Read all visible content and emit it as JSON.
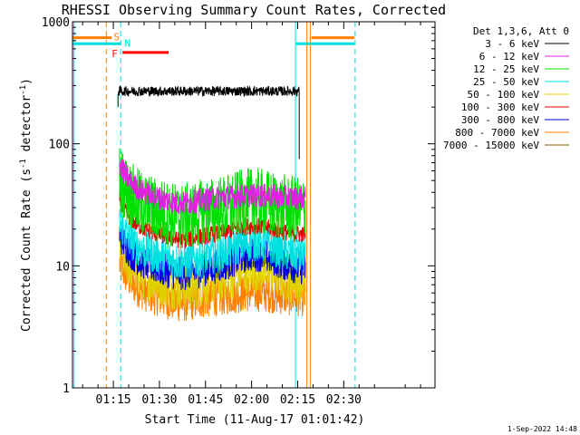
{
  "chart_data": {
    "type": "line",
    "title": "RHESSI Observing Summary Count Rates, Corrected",
    "xlabel": "Start Time (11-Aug-17 01:01:42)",
    "ylabel_parts": [
      "Corrected Count Rate (s",
      "-1",
      " detector",
      "-1",
      ")"
    ],
    "yscale": "log",
    "ylim": [
      1,
      1000
    ],
    "y_ticks": [
      {
        "v": 1,
        "label": "1"
      },
      {
        "v": 10,
        "label": "10"
      },
      {
        "v": 100,
        "label": "100"
      },
      {
        "v": 1000,
        "label": "1000"
      }
    ],
    "xlim_min": [
      61.7,
      179.7
    ],
    "x_ticks": [
      {
        "m": 75,
        "label": "01:15"
      },
      {
        "m": 90,
        "label": "01:30"
      },
      {
        "m": 105,
        "label": "01:45"
      },
      {
        "m": 120,
        "label": "02:00"
      },
      {
        "m": 135,
        "label": "02:15"
      },
      {
        "m": 150,
        "label": "02:30"
      }
    ],
    "legend_header": "Det 1,3,6, Att 0",
    "legend_position": "right",
    "series": [
      {
        "name": "3 - 6 keV",
        "color": "#000000",
        "level": 270,
        "noise": 0.02,
        "hump": 0.0,
        "start": 76.5,
        "end": 135.5
      },
      {
        "name": "6 - 12 keV",
        "color": "#e020e0",
        "level": 36,
        "noise": 0.05,
        "hump": 0.05
      },
      {
        "name": "12 - 25 keV",
        "color": "#00e000",
        "level": 28,
        "noise": 0.14,
        "hump": 0.2
      },
      {
        "name": "25 - 50 keV",
        "color": "#00e0e0",
        "level": 12,
        "noise": 0.08,
        "hump": 0.3
      },
      {
        "name": "50 - 100 keV",
        "color": "#e0d000",
        "level": 7.5,
        "noise": 0.1,
        "hump": 0.25
      },
      {
        "name": "100 - 300 keV",
        "color": "#e00000",
        "level": 18,
        "noise": 0.035,
        "hump": 0.18
      },
      {
        "name": "300 - 800 keV",
        "color": "#0000e0",
        "level": 9.5,
        "noise": 0.07,
        "hump": 0.3
      },
      {
        "name": "800 - 7000 keV",
        "color": "#ff8000",
        "level": 5.5,
        "noise": 0.08,
        "hump": 0.1
      },
      {
        "name": "7000 - 15000 keV",
        "color": "#806000",
        "level": null
      }
    ],
    "flags": {
      "S": {
        "label": "S",
        "color": "#ff8000",
        "level": 740,
        "segments": [
          [
            61.7,
            74.5
          ],
          [
            139.5,
            153.5
          ]
        ]
      },
      "N": {
        "label": "N",
        "color": "#00e0e0",
        "level": 660,
        "segments": [
          [
            61.7,
            77.5
          ],
          [
            134.5,
            153.5
          ]
        ]
      },
      "F": {
        "label": "F",
        "color": "#ff0000",
        "level": 560,
        "segments": [
          [
            78,
            93
          ]
        ]
      }
    },
    "vlines": [
      {
        "m": 62.2,
        "color": "#00e0e0",
        "style": "solid"
      },
      {
        "m": 72.7,
        "color": "#ff8000",
        "style": "dashed"
      },
      {
        "m": 77.4,
        "color": "#00e0e0",
        "style": "dashed"
      },
      {
        "m": 134.3,
        "color": "#00e0e0",
        "style": "solid"
      },
      {
        "m": 138.0,
        "color": "#ff8000",
        "style": "solid"
      },
      {
        "m": 139.1,
        "color": "#ff8000",
        "style": "solid"
      },
      {
        "m": 153.7,
        "color": "#00e0e0",
        "style": "dashed"
      }
    ],
    "data_start": 77.0,
    "data_end": 137.5,
    "timestamp": "1-Sep-2022 14:48"
  }
}
